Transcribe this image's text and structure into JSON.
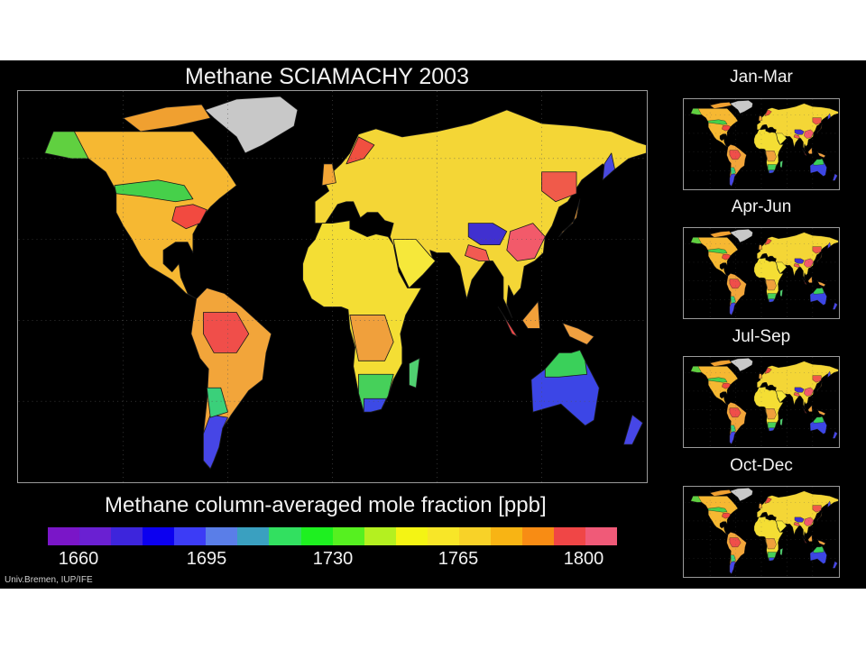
{
  "title": "Methane SCIAMACHY 2003",
  "scale": {
    "title": "Methane column-averaged mole fraction [ppb]",
    "ticks": [
      "1660",
      "1695",
      "1730",
      "1765",
      "1800"
    ],
    "colors": [
      "#7a16c8",
      "#6a20d2",
      "#3d25dc",
      "#0c00f0",
      "#3c3cf6",
      "#5a7ee8",
      "#3aa0c0",
      "#32e060",
      "#1ef020",
      "#56f020",
      "#b4f020",
      "#f4f414",
      "#f8e628",
      "#f8d228",
      "#f8b414",
      "#f88c14",
      "#f04646",
      "#f05a78"
    ]
  },
  "seasons": [
    {
      "label": "Jan-Mar"
    },
    {
      "label": "Apr-Jun"
    },
    {
      "label": "Jul-Sep"
    },
    {
      "label": "Oct-Dec"
    }
  ],
  "credit": "Univ.Bremen, IUP/IFE",
  "regions": [
    {
      "name": "greenland",
      "color": "#c8c8c8",
      "pts": [
        [
          -73,
          78
        ],
        [
          -55,
          82
        ],
        [
          -30,
          83
        ],
        [
          -20,
          78
        ],
        [
          -22,
          72
        ],
        [
          -40,
          65
        ],
        [
          -50,
          62
        ],
        [
          -55,
          68
        ],
        [
          -68,
          75
        ]
      ]
    },
    {
      "name": "canada-arctic-islands",
      "color": "#f0a030",
      "pts": [
        [
          -120,
          75
        ],
        [
          -95,
          79
        ],
        [
          -75,
          80
        ],
        [
          -70,
          75
        ],
        [
          -90,
          72
        ],
        [
          -110,
          70
        ]
      ]
    },
    {
      "name": "north-america",
      "color": "#f6b832",
      "pts": [
        [
          -165,
          62
        ],
        [
          -160,
          70
        ],
        [
          -140,
          70
        ],
        [
          -120,
          70
        ],
        [
          -95,
          70
        ],
        [
          -80,
          70
        ],
        [
          -70,
          63
        ],
        [
          -60,
          55
        ],
        [
          -55,
          50
        ],
        [
          -65,
          45
        ],
        [
          -70,
          42
        ],
        [
          -75,
          38
        ],
        [
          -80,
          32
        ],
        [
          -80,
          25
        ],
        [
          -83,
          29
        ],
        [
          -90,
          29
        ],
        [
          -97,
          26
        ],
        [
          -97,
          21
        ],
        [
          -92,
          18
        ],
        [
          -88,
          21
        ],
        [
          -87,
          16
        ],
        [
          -83,
          10
        ],
        [
          -78,
          8
        ],
        [
          -84,
          10
        ],
        [
          -92,
          15
        ],
        [
          -105,
          20
        ],
        [
          -110,
          24
        ],
        [
          -115,
          30
        ],
        [
          -120,
          35
        ],
        [
          -124,
          40
        ],
        [
          -124,
          48
        ],
        [
          -130,
          55
        ],
        [
          -140,
          60
        ],
        [
          -150,
          60
        ]
      ]
    },
    {
      "name": "alaska-west",
      "color": "#60d040",
      "pts": [
        [
          -165,
          62
        ],
        [
          -160,
          70
        ],
        [
          -148,
          70
        ],
        [
          -140,
          60
        ],
        [
          -150,
          60
        ]
      ]
    },
    {
      "name": "canada-south-green",
      "color": "#46d04a",
      "pts": [
        [
          -125,
          50
        ],
        [
          -100,
          52
        ],
        [
          -85,
          50
        ],
        [
          -80,
          45
        ],
        [
          -90,
          44
        ],
        [
          -110,
          46
        ],
        [
          -124,
          47
        ]
      ]
    },
    {
      "name": "us-northeast",
      "color": "#f24a40",
      "pts": [
        [
          -90,
          42
        ],
        [
          -80,
          43
        ],
        [
          -72,
          41
        ],
        [
          -76,
          36
        ],
        [
          -84,
          34
        ],
        [
          -92,
          37
        ]
      ]
    },
    {
      "name": "south-america",
      "color": "#f2a53a",
      "pts": [
        [
          -78,
          8
        ],
        [
          -72,
          12
        ],
        [
          -62,
          10
        ],
        [
          -52,
          5
        ],
        [
          -35,
          -5
        ],
        [
          -38,
          -12
        ],
        [
          -40,
          -22
        ],
        [
          -48,
          -26
        ],
        [
          -58,
          -35
        ],
        [
          -63,
          -40
        ],
        [
          -65,
          -47
        ],
        [
          -68,
          -52
        ],
        [
          -70,
          -55
        ],
        [
          -74,
          -52
        ],
        [
          -74,
          -42
        ],
        [
          -72,
          -30
        ],
        [
          -71,
          -18
        ],
        [
          -76,
          -14
        ],
        [
          -81,
          -5
        ],
        [
          -80,
          0
        ]
      ]
    },
    {
      "name": "amazon-red",
      "color": "#f04e4a",
      "pts": [
        [
          -74,
          3
        ],
        [
          -55,
          3
        ],
        [
          -48,
          -5
        ],
        [
          -55,
          -12
        ],
        [
          -68,
          -12
        ],
        [
          -74,
          -5
        ]
      ]
    },
    {
      "name": "south-america-south",
      "color": "#4646e6",
      "pts": [
        [
          -70,
          -35
        ],
        [
          -60,
          -36
        ],
        [
          -63,
          -40
        ],
        [
          -65,
          -47
        ],
        [
          -68,
          -52
        ],
        [
          -70,
          -55
        ],
        [
          -74,
          -52
        ],
        [
          -74,
          -42
        ]
      ]
    },
    {
      "name": "chile-green",
      "color": "#3ad07a",
      "pts": [
        [
          -72,
          -25
        ],
        [
          -64,
          -25
        ],
        [
          -60,
          -34
        ],
        [
          -70,
          -36
        ]
      ]
    },
    {
      "name": "eurasia",
      "color": "#f4d636",
      "pts": [
        [
          -10,
          36
        ],
        [
          -10,
          44
        ],
        [
          -2,
          48
        ],
        [
          -5,
          52
        ],
        [
          5,
          58
        ],
        [
          10,
          62
        ],
        [
          15,
          69
        ],
        [
          25,
          71
        ],
        [
          40,
          68
        ],
        [
          60,
          70
        ],
        [
          80,
          73
        ],
        [
          100,
          78
        ],
        [
          120,
          73
        ],
        [
          140,
          72
        ],
        [
          160,
          70
        ],
        [
          175,
          66
        ],
        [
          180,
          65
        ],
        [
          180,
          62
        ],
        [
          170,
          60
        ],
        [
          160,
          55
        ],
        [
          155,
          58
        ],
        [
          143,
          52
        ],
        [
          135,
          44
        ],
        [
          130,
          42
        ],
        [
          126,
          35
        ],
        [
          122,
          31
        ],
        [
          121,
          25
        ],
        [
          116,
          22
        ],
        [
          110,
          20
        ],
        [
          108,
          12
        ],
        [
          104,
          9
        ],
        [
          101,
          13
        ],
        [
          100,
          6
        ],
        [
          103,
          1
        ],
        [
          98,
          8
        ],
        [
          98,
          16
        ],
        [
          92,
          22
        ],
        [
          88,
          22
        ],
        [
          80,
          15
        ],
        [
          77,
          8
        ],
        [
          73,
          20
        ],
        [
          67,
          25
        ],
        [
          60,
          25
        ],
        [
          56,
          26
        ],
        [
          58,
          22
        ],
        [
          52,
          17
        ],
        [
          44,
          12
        ],
        [
          42,
          15
        ],
        [
          35,
          28
        ],
        [
          33,
          31
        ],
        [
          35,
          36
        ],
        [
          30,
          37
        ],
        [
          26,
          40
        ],
        [
          20,
          40
        ],
        [
          16,
          38
        ],
        [
          12,
          44
        ],
        [
          8,
          44
        ],
        [
          3,
          43
        ],
        [
          -4,
          36
        ]
      ]
    },
    {
      "name": "uk",
      "color": "#f4a636",
      "pts": [
        [
          -6,
          50
        ],
        [
          2,
          51
        ],
        [
          0,
          58
        ],
        [
          -5,
          58
        ]
      ]
    },
    {
      "name": "scandinavia-red",
      "color": "#f05040",
      "pts": [
        [
          8,
          58
        ],
        [
          18,
          60
        ],
        [
          24,
          65
        ],
        [
          15,
          68
        ]
      ]
    },
    {
      "name": "tibet",
      "color": "#4030d0",
      "pts": [
        [
          78,
          36
        ],
        [
          92,
          36
        ],
        [
          100,
          33
        ],
        [
          96,
          28
        ],
        [
          85,
          28
        ],
        [
          78,
          31
        ]
      ]
    },
    {
      "name": "east-china",
      "color": "#f25a6a",
      "pts": [
        [
          102,
          33
        ],
        [
          115,
          36
        ],
        [
          122,
          31
        ],
        [
          116,
          23
        ],
        [
          106,
          22
        ],
        [
          100,
          26
        ]
      ]
    },
    {
      "name": "india-red",
      "color": "#f25a52",
      "pts": [
        [
          78,
          28
        ],
        [
          88,
          26
        ],
        [
          90,
          22
        ],
        [
          84,
          22
        ],
        [
          76,
          24
        ]
      ]
    },
    {
      "name": "africa",
      "color": "#f4de34",
      "pts": [
        [
          -17,
          21
        ],
        [
          -17,
          15
        ],
        [
          -12,
          8
        ],
        [
          -5,
          5
        ],
        [
          5,
          5
        ],
        [
          9,
          4
        ],
        [
          10,
          -3
        ],
        [
          13,
          -10
        ],
        [
          12,
          -17
        ],
        [
          15,
          -27
        ],
        [
          18,
          -34
        ],
        [
          22,
          -34
        ],
        [
          28,
          -33
        ],
        [
          32,
          -28
        ],
        [
          35,
          -22
        ],
        [
          40,
          -16
        ],
        [
          40,
          -10
        ],
        [
          39,
          -5
        ],
        [
          42,
          2
        ],
        [
          51,
          12
        ],
        [
          43,
          12
        ],
        [
          38,
          18
        ],
        [
          35,
          28
        ],
        [
          32,
          31
        ],
        [
          25,
          32
        ],
        [
          20,
          31
        ],
        [
          10,
          34
        ],
        [
          10,
          37
        ],
        [
          0,
          36
        ],
        [
          -6,
          36
        ],
        [
          -10,
          30
        ],
        [
          -14,
          27
        ]
      ]
    },
    {
      "name": "central-africa-orange",
      "color": "#f0a03c",
      "pts": [
        [
          10,
          2
        ],
        [
          30,
          2
        ],
        [
          35,
          -8
        ],
        [
          30,
          -15
        ],
        [
          15,
          -15
        ],
        [
          12,
          -5
        ]
      ]
    },
    {
      "name": "southern-africa-green",
      "color": "#46d05a",
      "pts": [
        [
          15,
          -20
        ],
        [
          35,
          -20
        ],
        [
          32,
          -28
        ],
        [
          28,
          -33
        ],
        [
          22,
          -34
        ],
        [
          18,
          -34
        ],
        [
          15,
          -27
        ]
      ]
    },
    {
      "name": "south-africa-blue",
      "color": "#3c4ae6",
      "pts": [
        [
          18,
          -29
        ],
        [
          31,
          -29
        ],
        [
          28,
          -33
        ],
        [
          22,
          -34
        ],
        [
          18,
          -34
        ]
      ]
    },
    {
      "name": "madagascar",
      "color": "#50d070",
      "pts": [
        [
          44,
          -16
        ],
        [
          50,
          -14
        ],
        [
          48,
          -25
        ],
        [
          44,
          -24
        ]
      ]
    },
    {
      "name": "arabia",
      "color": "#f6e83a",
      "pts": [
        [
          35,
          30
        ],
        [
          48,
          30
        ],
        [
          56,
          24
        ],
        [
          59,
          22
        ],
        [
          52,
          17
        ],
        [
          44,
          12
        ],
        [
          38,
          20
        ]
      ]
    },
    {
      "name": "australia",
      "color": "#3c46e6",
      "pts": [
        [
          114,
          -22
        ],
        [
          122,
          -18
        ],
        [
          130,
          -12
        ],
        [
          137,
          -12
        ],
        [
          142,
          -11
        ],
        [
          145,
          -15
        ],
        [
          153,
          -25
        ],
        [
          150,
          -37
        ],
        [
          145,
          -39
        ],
        [
          138,
          -35
        ],
        [
          131,
          -31
        ],
        [
          115,
          -34
        ]
      ]
    },
    {
      "name": "australia-north-green",
      "color": "#3ad05a",
      "pts": [
        [
          122,
          -18
        ],
        [
          130,
          -12
        ],
        [
          137,
          -12
        ],
        [
          142,
          -11
        ],
        [
          145,
          -15
        ],
        [
          146,
          -20
        ],
        [
          130,
          -21
        ],
        [
          122,
          -21
        ]
      ]
    },
    {
      "name": "new-zealand",
      "color": "#4646e6",
      "pts": [
        [
          172,
          -35
        ],
        [
          178,
          -38
        ],
        [
          172,
          -46
        ],
        [
          167,
          -46
        ]
      ]
    },
    {
      "name": "indonesia-a",
      "color": "#f04a4a",
      "pts": [
        [
          95,
          5
        ],
        [
          106,
          -6
        ],
        [
          103,
          -5
        ],
        [
          98,
          2
        ]
      ]
    },
    {
      "name": "indonesia-b",
      "color": "#f2a03a",
      "pts": [
        [
          109,
          0
        ],
        [
          118,
          7
        ],
        [
          119,
          -3
        ],
        [
          112,
          -3
        ]
      ]
    },
    {
      "name": "new-guinea",
      "color": "#f0a040",
      "pts": [
        [
          132,
          -1
        ],
        [
          141,
          -3
        ],
        [
          150,
          -6
        ],
        [
          146,
          -9
        ],
        [
          136,
          -6
        ]
      ]
    },
    {
      "name": "japan",
      "color": "#f0a03a",
      "pts": [
        [
          130,
          31
        ],
        [
          140,
          38
        ],
        [
          142,
          45
        ],
        [
          138,
          36
        ],
        [
          132,
          33
        ]
      ]
    },
    {
      "name": "kamchatka-blue",
      "color": "#4a4ae0",
      "pts": [
        [
          155,
          52
        ],
        [
          162,
          56
        ],
        [
          160,
          62
        ],
        [
          156,
          58
        ]
      ]
    },
    {
      "name": "ne-asia-red",
      "color": "#f05a4a",
      "pts": [
        [
          120,
          55
        ],
        [
          140,
          55
        ],
        [
          140,
          47
        ],
        [
          128,
          44
        ],
        [
          120,
          48
        ]
      ]
    }
  ]
}
